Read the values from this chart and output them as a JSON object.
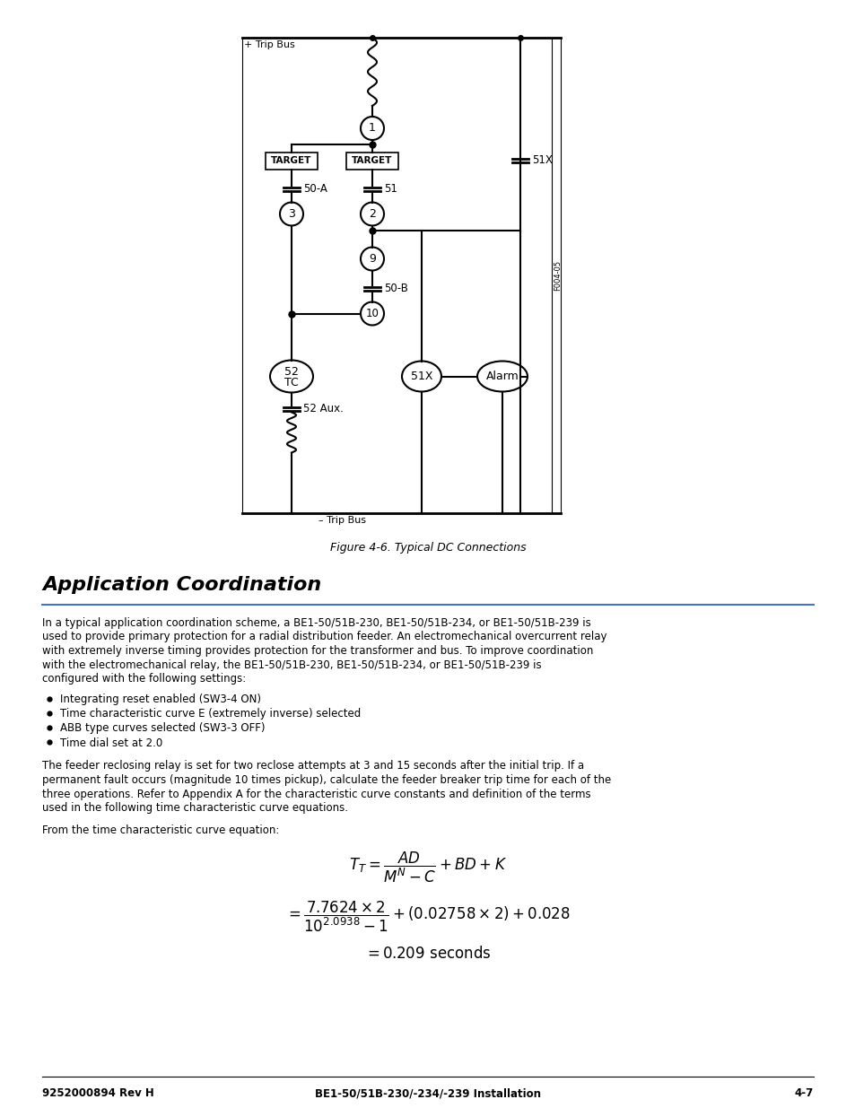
{
  "page_bg": "#ffffff",
  "fig_caption": "Figure 4-6. Typical DC Connections",
  "section_title": "Application Coordination",
  "body_text_1": "In a typical application coordination scheme, a BE1-50/51B-230, BE1-50/51B-234, or BE1-50/51B-239 is\nused to provide primary protection for a radial distribution feeder. An electromechanical overcurrent relay\nwith extremely inverse timing provides protection for the transformer and bus. To improve coordination\nwith the electromechanical relay, the BE1-50/51B-230, BE1-50/51B-234, or BE1-50/51B-239 is\nconfigured with the following settings:",
  "bullets": [
    "Integrating reset enabled (SW3-4 ON)",
    "Time characteristic curve E (extremely inverse) selected",
    "ABB type curves selected (SW3-3 OFF)",
    "Time dial set at 2.0"
  ],
  "body_text_2": "The feeder reclosing relay is set for two reclose attempts at 3 and 15 seconds after the initial trip. If a\npermanent fault occurs (magnitude 10 times pickup), calculate the feeder breaker trip time for each of the\nthree operations. Refer to Appendix A for the characteristic curve constants and definition of the terms\nused in the following time characteristic curve equations.",
  "body_text_3": "From the time characteristic curve equation:",
  "footer_left": "9252000894 Rev H",
  "footer_center": "BE1-50/51B-230/-234/-239 Installation",
  "footer_right": "4-7"
}
